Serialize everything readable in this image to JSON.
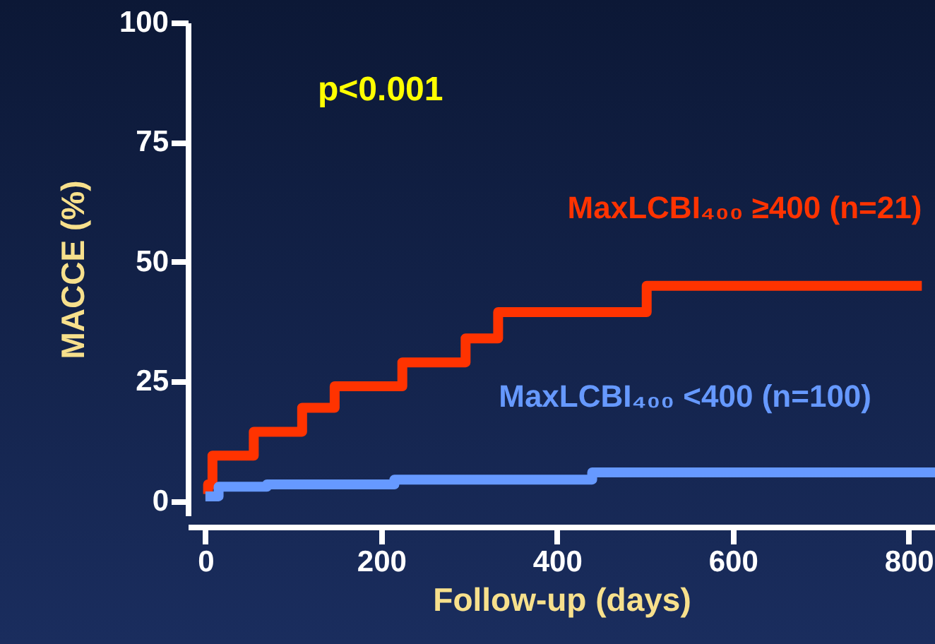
{
  "chart_data": {
    "type": "step",
    "xlabel": "Follow-up (days)",
    "ylabel": "MACCE (%)",
    "annotations": [
      "p<0.001"
    ],
    "xlim": [
      -20,
      830
    ],
    "ylim": [
      -3,
      100
    ],
    "xticks": [
      0,
      200,
      400,
      600,
      800
    ],
    "yticks": [
      0,
      25,
      50,
      75,
      100
    ],
    "grid": false,
    "legend": false,
    "marker": "none",
    "line_style": "solid",
    "series": [
      {
        "name": "MaxLCBI₄₀₀ ≥400 (n=21)",
        "color": "#ff3300",
        "x": [
          0,
          3,
          8,
          55,
          110,
          147,
          224,
          296,
          333,
          502,
          815
        ],
        "values": [
          1.5,
          3.5,
          9.5,
          14.5,
          19.5,
          24,
          29,
          34,
          39.5,
          45,
          45
        ]
      },
      {
        "name": "MaxLCBI₄₀₀ <400 (n=100)",
        "color": "#6699ff",
        "x": [
          0,
          15,
          70,
          215,
          440,
          830
        ],
        "values": [
          1,
          3,
          3.5,
          4.5,
          6,
          6.5
        ]
      }
    ]
  }
}
